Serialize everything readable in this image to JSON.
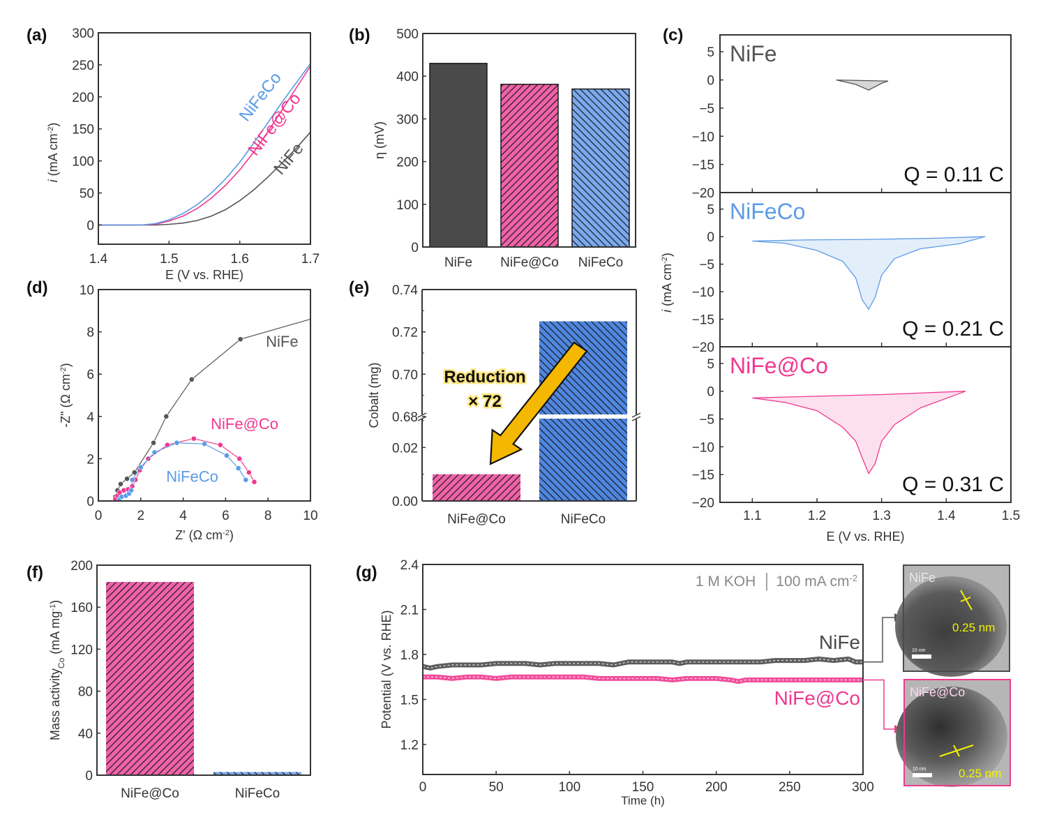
{
  "colors": {
    "nife": "#555555",
    "nife_dark": "#4a4a4a",
    "nifeco": "#5b9be6",
    "nifeco_light": "#e3eefb",
    "nifeco_bar": "#7ba9ee",
    "nifeatco": "#f0388f",
    "nifeatco_light": "#fde0ee",
    "nifeatco_bar": "#f062a8",
    "arrow": "#f5b800",
    "tem_label": "#f2f200"
  },
  "chart_data": [
    {
      "id": "a",
      "panel_label": "(a)",
      "type": "line",
      "xlabel": "E (V vs. RHE)",
      "ylabel": "i (mA cm-2)",
      "ylabel_italic": "i",
      "ylabel_rest": " (mA cm",
      "ylabel_sup": "-2",
      "ylabel_end": ")",
      "xlim": [
        1.4,
        1.7
      ],
      "ylim": [
        -30,
        300
      ],
      "xticks": [
        1.4,
        1.5,
        1.6,
        1.7
      ],
      "xtick_labels": [
        "1.4",
        "1.5",
        "1.6",
        "1.7"
      ],
      "yticks": [
        0,
        50,
        100,
        150,
        200,
        250,
        300
      ],
      "ytick_labels": [
        "0",
        "50",
        "100",
        "150",
        "200",
        "250",
        "300"
      ],
      "series": [
        {
          "name": "NiFeCo",
          "color_key": "nifeco",
          "x": [
            1.4,
            1.46,
            1.48,
            1.5,
            1.52,
            1.54,
            1.56,
            1.58,
            1.6,
            1.62,
            1.64,
            1.66,
            1.68,
            1.7
          ],
          "y": [
            0,
            0,
            2,
            8,
            18,
            32,
            50,
            72,
            98,
            128,
            160,
            192,
            222,
            252
          ]
        },
        {
          "name": "NiFe@Co",
          "color_key": "nifeatco",
          "x": [
            1.4,
            1.46,
            1.48,
            1.5,
            1.52,
            1.54,
            1.56,
            1.58,
            1.6,
            1.62,
            1.64,
            1.66,
            1.68,
            1.7
          ],
          "y": [
            0,
            0,
            1,
            6,
            14,
            26,
            42,
            62,
            86,
            114,
            146,
            180,
            214,
            248
          ]
        },
        {
          "name": "NiFe",
          "color_key": "nife",
          "x": [
            1.4,
            1.46,
            1.48,
            1.5,
            1.52,
            1.54,
            1.56,
            1.58,
            1.6,
            1.62,
            1.64,
            1.66,
            1.68,
            1.7
          ],
          "y": [
            0,
            0,
            0,
            1,
            3,
            7,
            14,
            24,
            38,
            55,
            75,
            97,
            120,
            145
          ]
        }
      ],
      "annotations": [
        {
          "text": "NiFeCo",
          "color_key": "nifeco",
          "x": 1.635,
          "y": 195,
          "rotate": -52
        },
        {
          "text": "NiFe@Co",
          "color_key": "nifeatco",
          "x": 1.655,
          "y": 152,
          "rotate": -52
        },
        {
          "text": "NiFe",
          "color_key": "nife",
          "x": 1.675,
          "y": 98,
          "rotate": -50
        }
      ]
    },
    {
      "id": "b",
      "panel_label": "(b)",
      "type": "bar",
      "ylabel": "η (mV)",
      "ylim": [
        0,
        500
      ],
      "yticks": [
        0,
        100,
        200,
        300,
        400,
        500
      ],
      "ytick_labels": [
        "0",
        "100",
        "200",
        "300",
        "400",
        "500"
      ],
      "categories": [
        "NiFe",
        "NiFe@Co",
        "NiFeCo"
      ],
      "values": [
        430,
        381,
        370
      ],
      "bar_styles": [
        "solid_dark",
        "hatch_pink",
        "hatch_blue"
      ]
    },
    {
      "id": "c",
      "panel_label": "(c)",
      "type": "area",
      "xlabel": "E (V vs. RHE)",
      "ylabel_italic": "i",
      "ylabel_rest": " (mA cm",
      "ylabel_sup": "-2",
      "ylabel_end": ")",
      "xlim": [
        1.05,
        1.5
      ],
      "ylim": [
        -20,
        8
      ],
      "xticks": [
        1.1,
        1.2,
        1.3,
        1.4,
        1.5
      ],
      "xtick_labels": [
        "1.1",
        "1.2",
        "1.3",
        "1.4",
        "1.5"
      ],
      "yticks": [
        -20,
        -15,
        -10,
        -5,
        0,
        5
      ],
      "ytick_labels": [
        "−20",
        "−15",
        "−10",
        "−5",
        "0",
        "5"
      ],
      "subplots": [
        {
          "name": "NiFe",
          "color_key": "nife",
          "fill": "#d6d6d6",
          "charge": "Q = 0.11 C",
          "upper": {
            "x": [
              1.23,
              1.31
            ],
            "y": [
              0,
              -0.2
            ]
          },
          "lower": {
            "x": [
              1.23,
              1.26,
              1.28,
              1.3,
              1.31
            ],
            "y": [
              0,
              -0.8,
              -1.8,
              -0.6,
              -0.2
            ]
          }
        },
        {
          "name": "NiFeCo",
          "color_key": "nifeco",
          "fill_key": "nifeco_light",
          "charge": "Q = 0.21 C",
          "upper": {
            "x": [
              1.1,
              1.18,
              1.28,
              1.38,
              1.46
            ],
            "y": [
              -0.8,
              -0.6,
              -0.5,
              -0.3,
              0
            ]
          },
          "lower": {
            "x": [
              1.1,
              1.15,
              1.2,
              1.24,
              1.26,
              1.27,
              1.28,
              1.29,
              1.3,
              1.32,
              1.36,
              1.42,
              1.46
            ],
            "y": [
              -0.8,
              -1.2,
              -2.5,
              -4.5,
              -7.5,
              -11.5,
              -13.2,
              -11,
              -7,
              -4,
              -2.2,
              -1.3,
              0
            ]
          }
        },
        {
          "name": "NiFe@Co",
          "color_key": "nifeatco",
          "fill_key": "nifeatco_light",
          "charge": "Q = 0.31 C",
          "upper": {
            "x": [
              1.1,
              1.2,
              1.3,
              1.43
            ],
            "y": [
              -1.2,
              -0.9,
              -0.6,
              0
            ]
          },
          "lower": {
            "x": [
              1.1,
              1.15,
              1.2,
              1.24,
              1.26,
              1.27,
              1.28,
              1.29,
              1.3,
              1.32,
              1.36,
              1.43
            ],
            "y": [
              -1.2,
              -2,
              -3.5,
              -6.5,
              -9,
              -12,
              -14.8,
              -13,
              -9,
              -6,
              -3,
              0
            ]
          }
        }
      ]
    },
    {
      "id": "d",
      "panel_label": "(d)",
      "type": "scatter",
      "xlabel_rest": "Z' (Ω cm",
      "xlabel_sup": "-2",
      "xlabel_end": ")",
      "ylabel_rest": "-Z\" (Ω cm",
      "ylabel_sup": "-2",
      "ylabel_end": ")",
      "xlim": [
        0,
        10
      ],
      "ylim": [
        0,
        10
      ],
      "xticks": [
        0,
        2,
        4,
        6,
        8,
        10
      ],
      "xtick_labels": [
        "0",
        "2",
        "4",
        "6",
        "8",
        "10"
      ],
      "yticks": [
        0,
        2,
        4,
        6,
        8,
        10
      ],
      "ytick_labels": [
        "0",
        "2",
        "4",
        "6",
        "8",
        "10"
      ],
      "series": [
        {
          "name": "NiFe",
          "color_key": "nife",
          "x": [
            0.8,
            0.9,
            1.05,
            1.35,
            1.7,
            2.6,
            3.2,
            4.4,
            6.7,
            10
          ],
          "y": [
            0.2,
            0.5,
            0.8,
            1.05,
            1.35,
            2.75,
            4.0,
            5.75,
            7.65,
            8.6
          ],
          "markers_count": 9
        },
        {
          "name": "NiFe@Co",
          "color_key": "nifeatco",
          "x": [
            0.8,
            0.9,
            1.0,
            1.2,
            1.4,
            1.6,
            1.75,
            1.95,
            2.35,
            3.25,
            4.5,
            5.75,
            6.65,
            7.1,
            7.35
          ],
          "y": [
            0.1,
            0.25,
            0.4,
            0.5,
            0.55,
            0.7,
            1.0,
            1.45,
            2.0,
            2.65,
            2.95,
            2.65,
            2.0,
            1.35,
            0.9
          ]
        },
        {
          "name": "NiFeCo",
          "color_key": "nifeco",
          "x": [
            1.0,
            1.1,
            1.3,
            1.45,
            1.55,
            1.6,
            2.0,
            2.65,
            3.7,
            5.0,
            6.05,
            6.6,
            6.95
          ],
          "y": [
            0.1,
            0.2,
            0.25,
            0.35,
            0.5,
            1.0,
            1.6,
            2.3,
            2.75,
            2.7,
            2.15,
            1.55,
            1.0
          ]
        }
      ],
      "annotations": [
        {
          "text": "NiFe",
          "color_key": "nife",
          "x": 7.9,
          "y": 7.3
        },
        {
          "text": "NiFe@Co",
          "color_key": "nifeatco",
          "x": 5.3,
          "y": 3.4
        },
        {
          "text": "NiFeCo",
          "color_key": "nifeco",
          "x": 3.2,
          "y": 0.9
        }
      ]
    },
    {
      "id": "e",
      "panel_label": "(e)",
      "type": "bar",
      "ylabel": "Cobalt (mg)",
      "axis_break": true,
      "lower_ylim": [
        0,
        0.03
      ],
      "upper_ylim": [
        0.68,
        0.74
      ],
      "lower_yticks": [
        0.0,
        0.02
      ],
      "lower_ytick_labels": [
        "0.00",
        "0.02"
      ],
      "upper_yticks": [
        0.68,
        0.7,
        0.72,
        0.74
      ],
      "upper_ytick_labels": [
        "0.68",
        "0.70",
        "0.72",
        "0.74"
      ],
      "categories": [
        "NiFe@Co",
        "NiFeCo"
      ],
      "values": [
        0.01,
        0.725
      ],
      "bar_styles": [
        "hatch_pink",
        "hatch_blue"
      ],
      "annotation": {
        "line1": "Reduction",
        "line2": "× 72"
      }
    },
    {
      "id": "f",
      "panel_label": "(f)",
      "type": "bar",
      "ylabel_rest": "Mass activity",
      "ylabel_sub": "Co",
      "ylabel_unit": " (mA mg",
      "ylabel_sup": "-1",
      "ylabel_end": ")",
      "ylim": [
        0,
        200
      ],
      "yticks": [
        0,
        40,
        80,
        120,
        160,
        200
      ],
      "ytick_labels": [
        "0",
        "40",
        "80",
        "120",
        "160",
        "200"
      ],
      "categories": [
        "NiFe@Co",
        "NiFeCo"
      ],
      "values": [
        184,
        3
      ],
      "bar_styles": [
        "hatch_pink",
        "hatch_blue"
      ]
    },
    {
      "id": "g",
      "panel_label": "(g)",
      "type": "line",
      "xlabel": "Time (h)",
      "ylabel": "Potential (V vs. RHE)",
      "xlim": [
        0,
        300
      ],
      "ylim": [
        1.0,
        2.4
      ],
      "xticks": [
        0,
        50,
        100,
        150,
        200,
        250,
        300
      ],
      "xtick_labels": [
        "0",
        "50",
        "100",
        "150",
        "200",
        "250",
        "300"
      ],
      "yticks": [
        1.2,
        1.5,
        1.8,
        2.1,
        2.4
      ],
      "ytick_labels": [
        "1.2",
        "1.5",
        "1.8",
        "2.1",
        "2.4"
      ],
      "condition_left": "1 M KOH",
      "condition_right": "100 mA cm",
      "condition_sup": "-2",
      "series": [
        {
          "name": "NiFe",
          "color_key": "nife_dark",
          "x": [
            0,
            5,
            10,
            20,
            30,
            40,
            50,
            60,
            70,
            80,
            90,
            100,
            110,
            120,
            130,
            140,
            150,
            160,
            170,
            175,
            180,
            190,
            200,
            210,
            220,
            230,
            240,
            250,
            260,
            270,
            280,
            290,
            295,
            300
          ],
          "y": [
            1.72,
            1.71,
            1.72,
            1.73,
            1.73,
            1.73,
            1.74,
            1.74,
            1.74,
            1.73,
            1.74,
            1.74,
            1.74,
            1.74,
            1.73,
            1.75,
            1.75,
            1.75,
            1.75,
            1.74,
            1.75,
            1.75,
            1.75,
            1.75,
            1.75,
            1.75,
            1.76,
            1.76,
            1.76,
            1.77,
            1.76,
            1.77,
            1.75,
            1.75
          ]
        },
        {
          "name": "NiFe@Co",
          "color_key": "nifeatco",
          "x": [
            0,
            10,
            20,
            30,
            40,
            50,
            60,
            70,
            80,
            90,
            100,
            110,
            120,
            130,
            140,
            150,
            160,
            170,
            180,
            190,
            200,
            210,
            215,
            220,
            230,
            240,
            250,
            260,
            270,
            280,
            290,
            300
          ],
          "y": [
            1.65,
            1.65,
            1.64,
            1.65,
            1.65,
            1.64,
            1.65,
            1.65,
            1.65,
            1.65,
            1.65,
            1.65,
            1.64,
            1.64,
            1.64,
            1.64,
            1.64,
            1.63,
            1.64,
            1.64,
            1.64,
            1.63,
            1.62,
            1.63,
            1.63,
            1.63,
            1.63,
            1.63,
            1.63,
            1.63,
            1.63,
            1.63
          ]
        }
      ],
      "annotations": [
        {
          "text": "NiFe",
          "color_key": "nife_dark"
        },
        {
          "text": "NiFe@Co",
          "color_key": "nifeatco"
        }
      ],
      "tem_insets": [
        {
          "label": "NiFe",
          "spacing": "0.25 nm",
          "scale": "10 nm",
          "border_key": "nife_dark"
        },
        {
          "label": "NiFe@Co",
          "spacing": "0.25 nm",
          "scale": "10 nm",
          "border_key": "nifeatco"
        }
      ]
    }
  ]
}
